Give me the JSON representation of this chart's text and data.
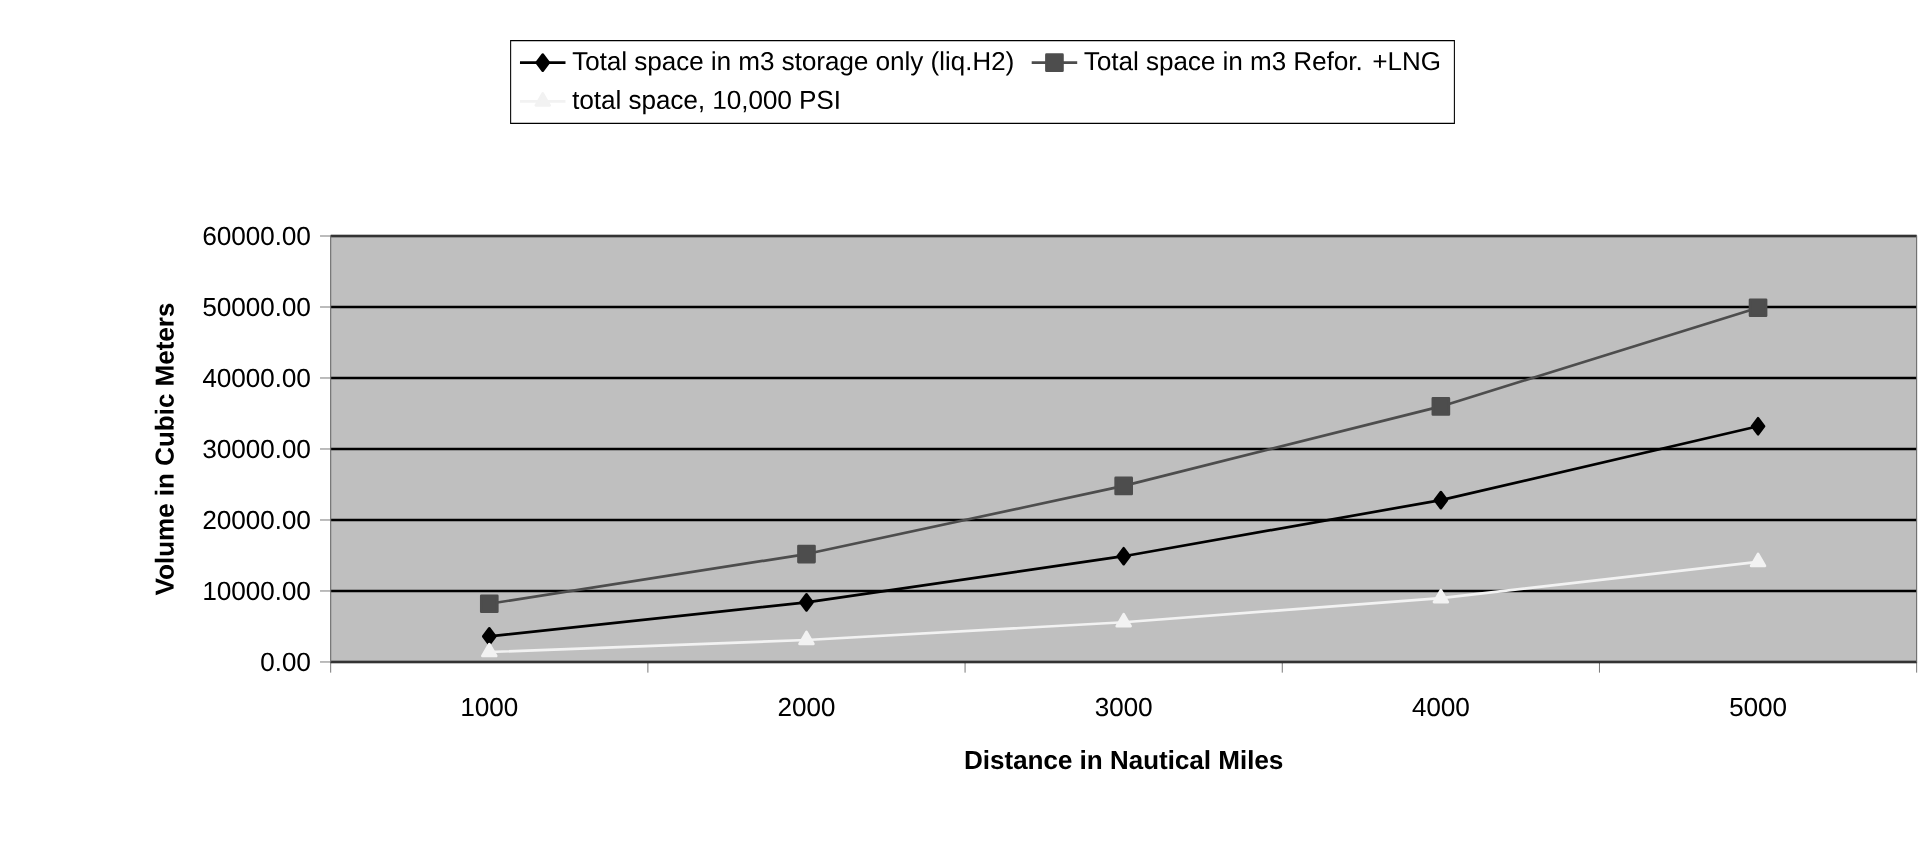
{
  "chart_data": {
    "type": "line",
    "xlabel": "Distance in Nautical Miles",
    "ylabel": "Volume in Cubic Meters",
    "categories": [
      "1000",
      "2000",
      "3000",
      "4000",
      "5000"
    ],
    "series": [
      {
        "name": "Total space in m3 storage only (liq.H2)",
        "color": "#000000",
        "marker": "diamond",
        "values": [
          3600,
          8400,
          14900,
          22800,
          33200
        ]
      },
      {
        "name": "Total space in m3 Refor. +LNG",
        "color": "#4d4d4d",
        "marker": "square",
        "values": [
          8200,
          15200,
          24800,
          36000,
          49900
        ]
      },
      {
        "name": "total space, 10,000 PSI",
        "color": "#f2f2f2",
        "marker": "triangle",
        "values": [
          1400,
          3100,
          5600,
          9000,
          14100
        ]
      }
    ],
    "ylim": [
      0,
      60000
    ],
    "yticks": [
      {
        "value": 0,
        "label": "0.00"
      },
      {
        "value": 10000,
        "label": "10000.00"
      },
      {
        "value": 20000,
        "label": "20000.00"
      },
      {
        "value": 30000,
        "label": "30000.00"
      },
      {
        "value": 40000,
        "label": "40000.00"
      },
      {
        "value": 50000,
        "label": "50000.00"
      },
      {
        "value": 60000,
        "label": "60000.00"
      }
    ],
    "grid": "y",
    "legend": "top"
  }
}
